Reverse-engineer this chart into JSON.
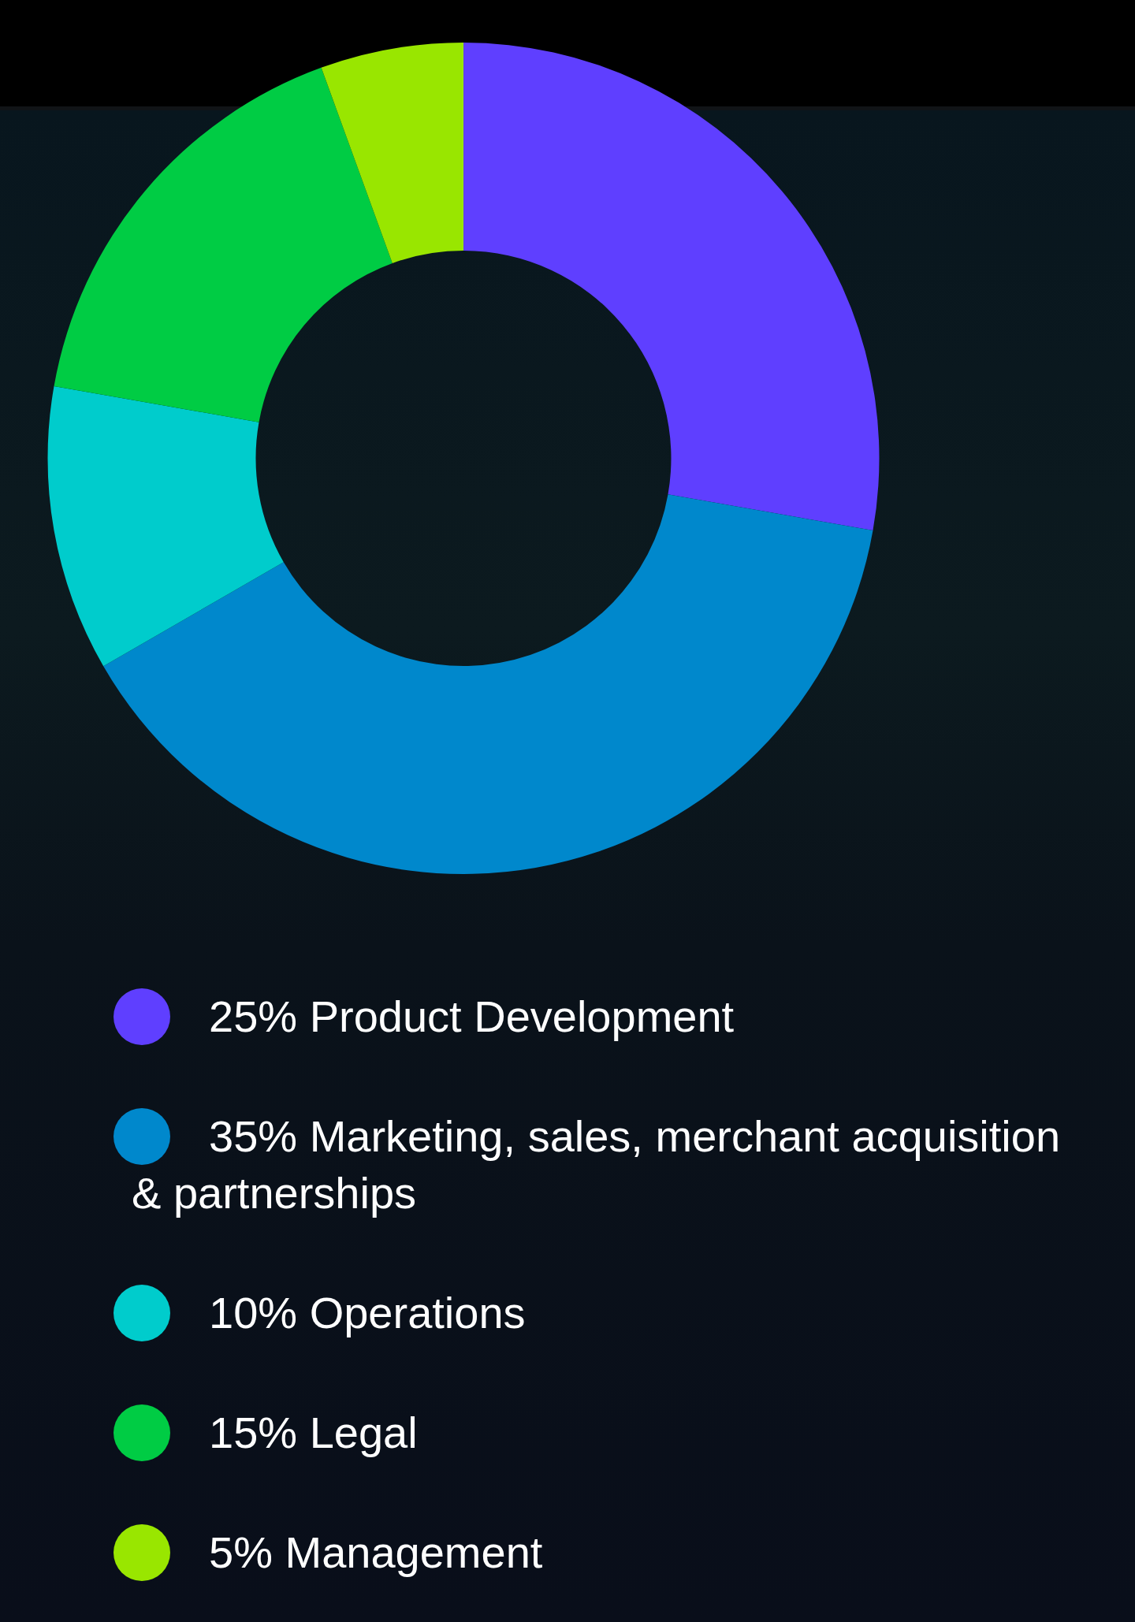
{
  "chart_data": {
    "type": "donut",
    "categories": [
      "25% Product Development",
      "35% Marketing, sales, merchant acquisition & partnerships",
      "10% Operations",
      "15% Legal",
      "5% Management"
    ],
    "values": [
      25,
      35,
      10,
      15,
      5
    ],
    "colors": [
      "#5f3fff",
      "#0088cc",
      "#00cccc",
      "#00cc44",
      "#99e600"
    ],
    "legend": "bottom"
  }
}
